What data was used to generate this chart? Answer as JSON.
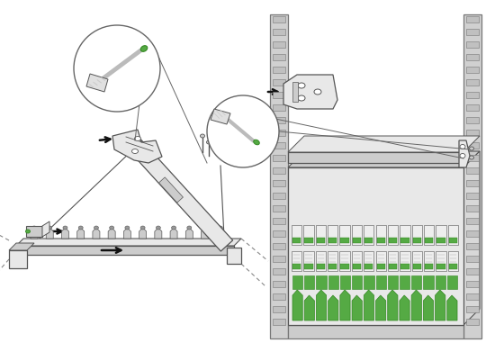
{
  "bg_color": "#ffffff",
  "figure_width": 5.4,
  "figure_height": 3.91,
  "dpi": 100,
  "line_color": "#555555",
  "fill_light": "#e8e8e8",
  "fill_mid": "#cccccc",
  "fill_dark": "#999999",
  "green_color": "#55aa44",
  "green_dark": "#338822",
  "arrow_color": "#111111",
  "rack_fill": "#d0d0d0",
  "rack_edge": "#777777",
  "white": "#ffffff",
  "circle_edge": "#666666",
  "dashed_color": "#888888",
  "screwdriver_body": "#e0e0e0",
  "screwdriver_shaft": "#bbbbbb",
  "green_screw": "#55aa44"
}
